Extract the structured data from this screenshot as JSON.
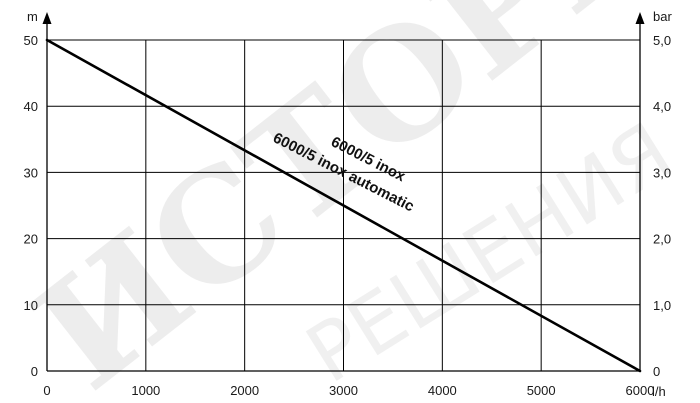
{
  "chart_data": {
    "type": "line",
    "y_unit_left": "m",
    "y_unit_right": "bar",
    "x_unit": "l/h",
    "xlim": [
      0,
      6000
    ],
    "ylim": [
      0,
      50
    ],
    "x_ticks": [
      0,
      1000,
      2000,
      3000,
      4000,
      5000,
      6000
    ],
    "x_tick_labels": [
      "0",
      "1000",
      "2000",
      "3000",
      "4000",
      "5000",
      "6000"
    ],
    "y_ticks": [
      0,
      10,
      20,
      30,
      40,
      50
    ],
    "y_tick_labels_left": [
      "0",
      "10",
      "20",
      "30",
      "40",
      "50"
    ],
    "y_tick_labels_right": [
      "0",
      "1,0",
      "2,0",
      "3,0",
      "4,0",
      "5,0"
    ],
    "grid": true,
    "series": [
      {
        "labels": [
          "6000/5 inox",
          "6000/5 inox automatic"
        ],
        "x": [
          0,
          6000
        ],
        "y": [
          50,
          0
        ],
        "color": "#000000"
      }
    ]
  },
  "watermark": {
    "text_main": "ИСТОРА",
    "text_secondary": "РЕШЕНИЯ"
  }
}
